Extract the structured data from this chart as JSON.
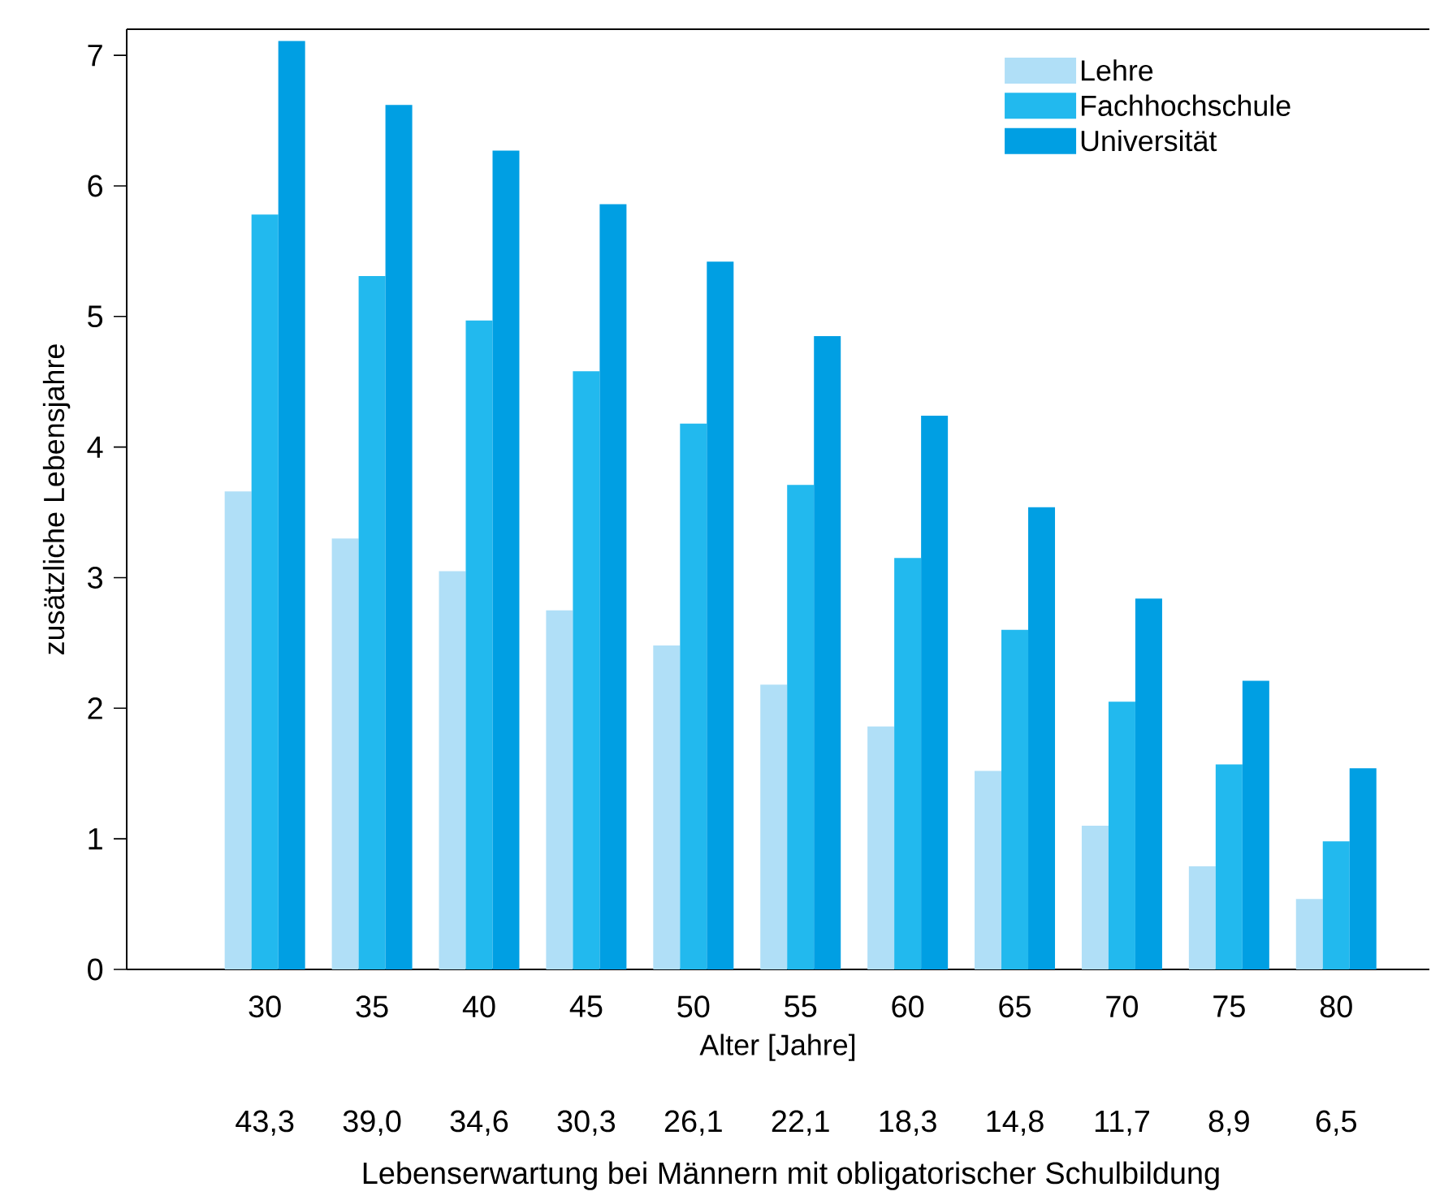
{
  "chart_data": {
    "type": "bar",
    "xlabel": "Alter [Jahre]",
    "ylabel": "zusätzliche Lebensjahre",
    "categories": [
      "30",
      "35",
      "40",
      "45",
      "50",
      "55",
      "60",
      "65",
      "70",
      "75",
      "80"
    ],
    "series": [
      {
        "name": "Lehre",
        "color": "#b0dff7",
        "values": [
          3.66,
          3.3,
          3.05,
          2.75,
          2.48,
          2.18,
          1.86,
          1.52,
          1.1,
          0.79,
          0.54
        ]
      },
      {
        "name": "Fachhochschule",
        "color": "#22b9ee",
        "values": [
          5.78,
          5.31,
          4.97,
          4.58,
          4.18,
          3.71,
          3.15,
          2.6,
          2.05,
          1.57,
          0.98
        ]
      },
      {
        "name": "Universität",
        "color": "#009fe3",
        "values": [
          7.11,
          6.62,
          6.27,
          5.86,
          5.42,
          4.85,
          4.24,
          3.54,
          2.84,
          2.21,
          1.54
        ]
      }
    ],
    "ylim": [
      0,
      7.2
    ],
    "yticks": [
      0,
      1,
      2,
      3,
      4,
      5,
      6,
      7
    ],
    "legend": "top right",
    "grid": false,
    "annotations": [
      "43,3",
      "39,0",
      "34,6",
      "30,3",
      "26,1",
      "22,1",
      "18,3",
      "14,8",
      "11,7",
      "8,9",
      "6,5",
      "Lebenserwartung bei Männern mit obligatorischer Schulbildung"
    ]
  }
}
